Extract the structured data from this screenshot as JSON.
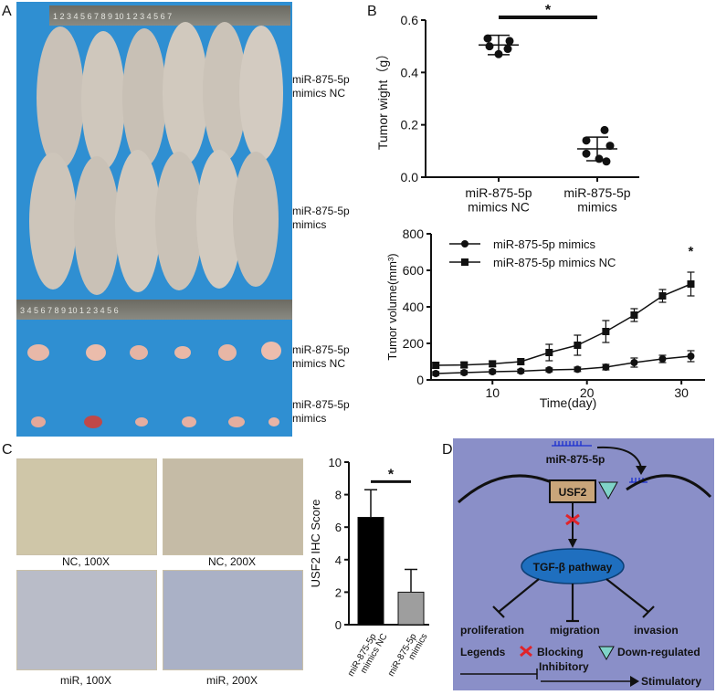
{
  "panels": {
    "a": "A",
    "b": "B",
    "c": "C",
    "d": "D"
  },
  "panel_a": {
    "labels": [
      "miR-875-5p\nmimics NC",
      "miR-875-5p\nmimics",
      "miR-875-5p\nmimics NC",
      "miR-875-5p\nmimics"
    ],
    "ruler_top_text": "1 2 3 4 5 6 7 8 9 10 1 2 3 4 5 6 7",
    "ruler_bottom_text": "3 4 5 6 7 8 9 10 1 2 3 4 5 6"
  },
  "panel_c": {
    "captions": [
      "NC, 100X",
      "NC, 200X",
      "miR, 100X",
      "miR, 200X"
    ]
  },
  "panel_d": {
    "mirna": "miR-875-5p",
    "gene": "USF2",
    "pathway": "TGF-β pathway",
    "outcomes": [
      "proliferation",
      "migration",
      "invasion"
    ],
    "legend_title": "Legends",
    "legend_blocking": "Blocking",
    "legend_down": "Down-regulated",
    "legend_inhibitory": "Inhibitory",
    "legend_stimulatory": "Stimulatory",
    "colors": {
      "background": "#8a8fc8",
      "gene_box": "#c9a57a",
      "ellipse": "#1f6fbf",
      "triangle": "#7fd3c8",
      "cross": "#e0242a",
      "mirna": "#1a2fd0"
    }
  },
  "chart_data": [
    {
      "type": "scatter",
      "ylabel": "Tumor wight（g）",
      "ylim": [
        0,
        0.6
      ],
      "yticks": [
        "0.0",
        "0.2",
        "0.4",
        "0.6"
      ],
      "categories": [
        "miR-875-5p\nmimics NC",
        "miR-875-5p\nmimics"
      ],
      "series": [
        {
          "points": [
            0.53,
            0.52,
            0.5,
            0.49,
            0.47
          ]
        },
        {
          "points": [
            0.18,
            0.14,
            0.12,
            0.09,
            0.07,
            0.06
          ]
        }
      ],
      "mean": [
        0.505,
        0.108
      ],
      "sd": [
        0.037,
        0.045
      ],
      "significance": "*"
    },
    {
      "type": "line",
      "xlabel": "Time(day)",
      "ylabel": "Tumor volume(mm³)",
      "xlim": [
        3.5,
        32.5
      ],
      "ylim": [
        0,
        800
      ],
      "xticks": [
        "10",
        "20",
        "30"
      ],
      "yticks": [
        "0",
        "200",
        "400",
        "600",
        "800"
      ],
      "legend_position": "top-left",
      "x": [
        4,
        7,
        10,
        13,
        16,
        19,
        22,
        25,
        28,
        31
      ],
      "series": [
        {
          "name": "miR-875-5p mimics",
          "marker": "circle",
          "values": [
            35,
            40,
            45,
            48,
            55,
            58,
            70,
            95,
            115,
            130
          ],
          "err": [
            10,
            10,
            10,
            10,
            10,
            12,
            15,
            25,
            20,
            30
          ]
        },
        {
          "name": "miR-875-5p mimics NC",
          "marker": "square",
          "values": [
            80,
            82,
            88,
            100,
            150,
            190,
            265,
            355,
            460,
            525
          ],
          "err": [
            15,
            15,
            15,
            15,
            45,
            55,
            60,
            35,
            35,
            65
          ]
        }
      ],
      "annotation": "*"
    },
    {
      "type": "bar",
      "ylabel": "USF2 IHC Score",
      "ylim": [
        0,
        10
      ],
      "yticks": [
        "0",
        "2",
        "4",
        "6",
        "8",
        "10"
      ],
      "categories": [
        "miR-875-5p\nmimics NC",
        "miR-875-5p\nmimics"
      ],
      "values": [
        6.6,
        2.0
      ],
      "err": [
        1.7,
        1.4
      ],
      "colors": [
        "#000000",
        "#9e9e9e"
      ],
      "significance": "*"
    }
  ]
}
